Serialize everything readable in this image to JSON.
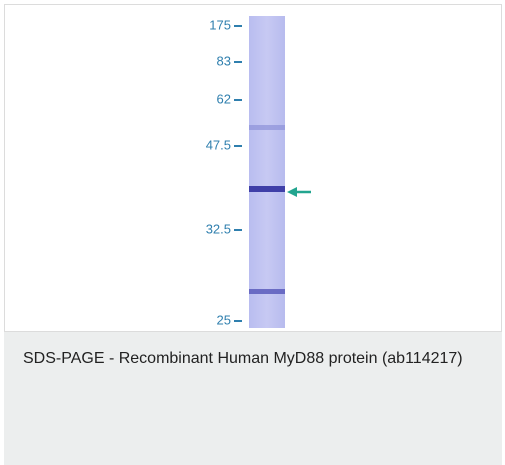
{
  "figure": {
    "markers": [
      "175",
      "83",
      "62",
      "47.5",
      "32.5",
      "25"
    ]
  },
  "caption": "SDS-PAGE - Recombinant Human MyD88 protein (ab114217)"
}
